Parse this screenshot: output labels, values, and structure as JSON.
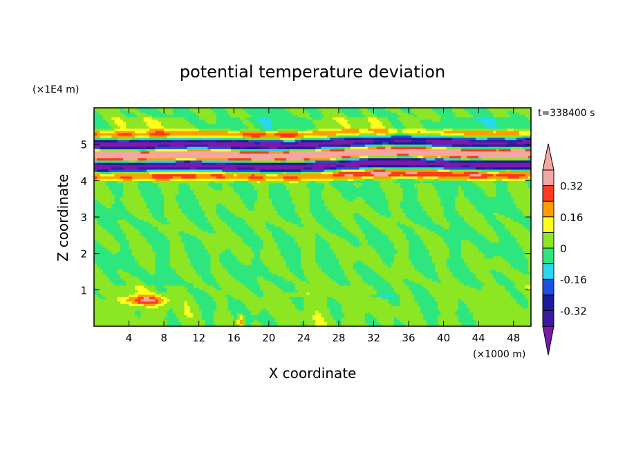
{
  "chart_data": {
    "type": "heatmap",
    "title": "potential temperature deviation",
    "xlabel": "X coordinate",
    "ylabel": "Z coordinate",
    "x_unit": "(×1000 m)",
    "y_unit": "(×1E4 m)",
    "time_label": "t=338400 s",
    "xlim": [
      0,
      50
    ],
    "ylim": [
      0,
      6
    ],
    "x_ticks": [
      4,
      8,
      12,
      16,
      20,
      24,
      28,
      32,
      36,
      40,
      44,
      48
    ],
    "y_ticks": [
      1,
      2,
      3,
      4,
      5
    ],
    "colorbar": {
      "levels": [
        -0.4,
        -0.32,
        -0.24,
        -0.16,
        -0.08,
        0,
        0.08,
        0.16,
        0.24,
        0.32,
        0.4
      ],
      "tick_labels": [
        "-0.32",
        "-0.16",
        "0",
        "0.16",
        "0.32"
      ],
      "tick_values": [
        -0.32,
        -0.16,
        0,
        0.16,
        0.32
      ],
      "colors": [
        "#3a1aa3",
        "#1a1a9e",
        "#1a4fe0",
        "#28d7f0",
        "#2ee67e",
        "#8ce623",
        "#ffff1e",
        "#ff9e00",
        "#ff3a1e",
        "#f4a7a2"
      ],
      "under_color": "#7a1aa8",
      "over_color": "#f4a7a2"
    }
  }
}
